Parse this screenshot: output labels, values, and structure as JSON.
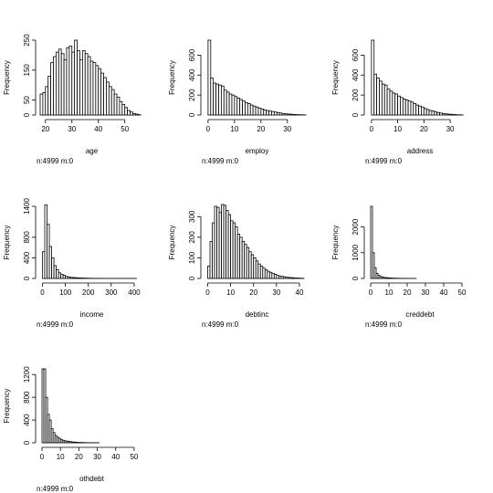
{
  "chart_data": [
    {
      "type": "bar",
      "variable": "age",
      "xlabel": "age",
      "ylabel": "Frequency",
      "note": "n:4999 m:0",
      "bin_start": 18,
      "bin_width": 1,
      "values": [
        70,
        75,
        95,
        130,
        175,
        195,
        210,
        220,
        205,
        185,
        225,
        230,
        210,
        250,
        215,
        185,
        215,
        205,
        195,
        180,
        175,
        165,
        155,
        140,
        125,
        110,
        95,
        85,
        70,
        60,
        45,
        35,
        25,
        15,
        10,
        5,
        3,
        1
      ],
      "xlim": [
        18,
        57
      ],
      "ylim": [
        0,
        250
      ],
      "xticks": [
        20,
        30,
        40,
        50
      ],
      "yticks": [
        0,
        50,
        150,
        250
      ]
    },
    {
      "type": "bar",
      "variable": "employ",
      "xlabel": "employ",
      "ylabel": "Frequency",
      "note": "n:4999 m:0",
      "bin_start": 0,
      "bin_width": 1,
      "values": [
        750,
        370,
        320,
        310,
        300,
        290,
        250,
        230,
        210,
        200,
        185,
        170,
        155,
        140,
        125,
        115,
        100,
        90,
        80,
        70,
        60,
        50,
        45,
        40,
        35,
        30,
        25,
        20,
        15,
        12,
        10,
        8,
        6,
        4,
        3,
        2,
        1
      ],
      "xlim": [
        -1,
        38
      ],
      "ylim": [
        0,
        750
      ],
      "xticks": [
        0,
        10,
        20,
        30
      ],
      "yticks": [
        0,
        200,
        400,
        600
      ]
    },
    {
      "type": "bar",
      "variable": "address",
      "xlabel": "address",
      "ylabel": "Frequency",
      "note": "n:4999 m:0",
      "bin_start": 0,
      "bin_width": 1,
      "values": [
        750,
        410,
        370,
        340,
        310,
        300,
        260,
        240,
        220,
        210,
        190,
        175,
        160,
        150,
        140,
        130,
        115,
        100,
        90,
        80,
        65,
        55,
        45,
        40,
        32,
        25,
        20,
        15,
        12,
        9,
        7,
        5,
        3,
        2,
        1
      ],
      "xlim": [
        -1,
        38
      ],
      "ylim": [
        0,
        750
      ],
      "xticks": [
        0,
        10,
        20,
        30
      ],
      "yticks": [
        0,
        200,
        400,
        600
      ]
    },
    {
      "type": "bar",
      "variable": "income",
      "xlabel": "income",
      "ylabel": "Frequency",
      "note": "n:4999 m:0",
      "bin_start": 0,
      "bin_width": 10,
      "values": [
        520,
        1430,
        1050,
        620,
        400,
        250,
        170,
        110,
        80,
        60,
        40,
        30,
        22,
        18,
        15,
        12,
        10,
        8,
        6,
        5,
        4,
        3,
        3,
        2,
        2,
        1,
        1,
        1,
        1,
        1,
        1,
        1,
        1,
        1,
        1,
        1,
        1,
        1,
        1,
        1,
        1
      ],
      "xlim": [
        -10,
        440
      ],
      "ylim": [
        0,
        1400
      ],
      "xticks": [
        0,
        100,
        200,
        300,
        400
      ],
      "yticks": [
        0,
        400,
        800,
        1400
      ]
    },
    {
      "type": "bar",
      "variable": "debtinc",
      "xlabel": "debtinc",
      "ylabel": "Frequency",
      "note": "n:4999 m:0",
      "bin_start": 0,
      "bin_width": 1,
      "values": [
        60,
        180,
        270,
        350,
        345,
        320,
        370,
        355,
        330,
        310,
        280,
        270,
        250,
        215,
        200,
        180,
        165,
        150,
        130,
        115,
        100,
        85,
        70,
        60,
        50,
        42,
        35,
        30,
        25,
        20,
        15,
        12,
        10,
        8,
        6,
        5,
        4,
        3,
        2,
        2,
        1,
        1
      ],
      "xlim": [
        -1,
        44
      ],
      "ylim": [
        0,
        350
      ],
      "xticks": [
        0,
        10,
        20,
        30,
        40
      ],
      "yticks": [
        0,
        100,
        200,
        300
      ]
    },
    {
      "type": "bar",
      "variable": "creddebt",
      "xlabel": "creddebt",
      "ylabel": "Frequency",
      "note": "n:4999 m:0",
      "bin_start": 0,
      "bin_width": 1,
      "values": [
        2800,
        1000,
        420,
        200,
        120,
        80,
        60,
        40,
        30,
        25,
        20,
        15,
        12,
        10,
        8,
        6,
        5,
        4,
        3,
        3,
        2,
        2,
        1,
        1,
        1
      ],
      "xlim": [
        -1,
        55
      ],
      "ylim": [
        0,
        2800
      ],
      "xticks": [
        0,
        10,
        20,
        30,
        40,
        50
      ],
      "yticks": [
        0,
        1000,
        2000
      ]
    },
    {
      "type": "bar",
      "variable": "othdebt",
      "xlabel": "othdebt",
      "ylabel": "Frequency",
      "note": "n:4999 m:0",
      "bin_start": 0,
      "bin_width": 1,
      "values": [
        1300,
        1300,
        800,
        500,
        400,
        250,
        180,
        130,
        100,
        80,
        60,
        45,
        35,
        30,
        25,
        20,
        15,
        12,
        10,
        8,
        6,
        5,
        4,
        3,
        2,
        2,
        1,
        1,
        1,
        1,
        1
      ],
      "xlim": [
        -1,
        55
      ],
      "ylim": [
        0,
        1300
      ],
      "xticks": [
        0,
        10,
        20,
        30,
        40,
        50
      ],
      "yticks": [
        0,
        400,
        800,
        1200
      ]
    }
  ]
}
